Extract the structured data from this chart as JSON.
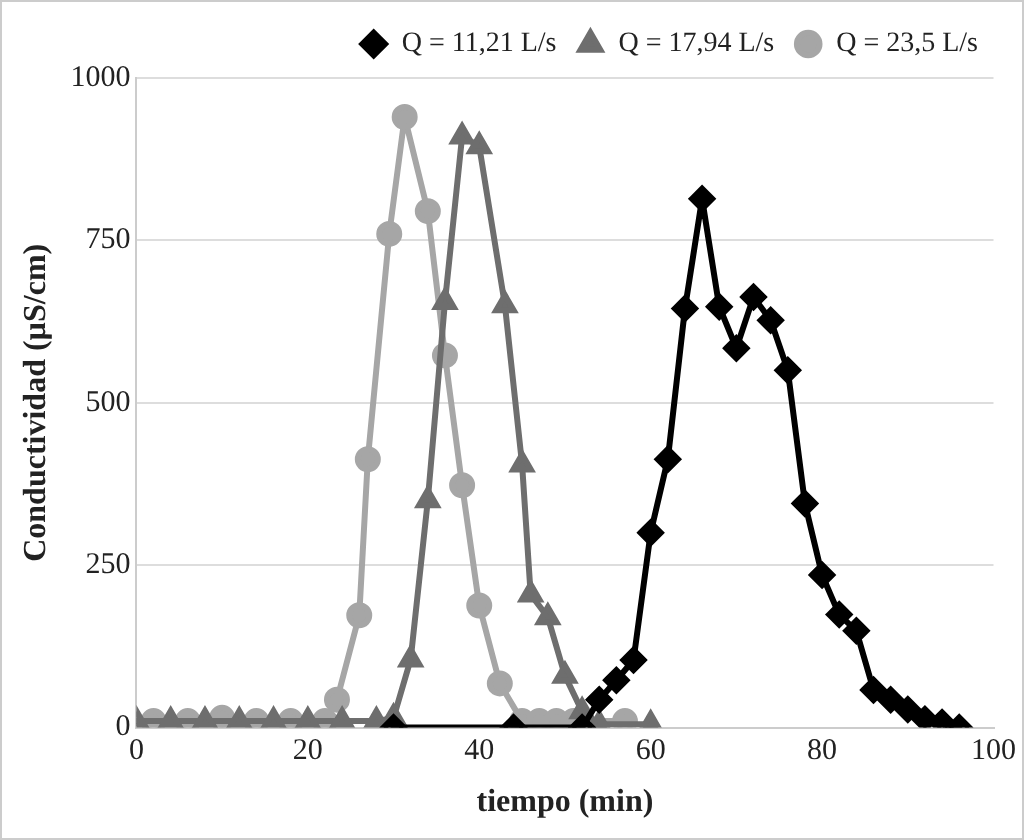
{
  "chart_data": {
    "type": "line",
    "xlabel": "tiempo (min)",
    "ylabel": "Conductividad (µS/cm)",
    "xlim": [
      0,
      100
    ],
    "xticks": [
      0,
      20,
      40,
      60,
      80,
      100
    ],
    "ylim": [
      0,
      1000
    ],
    "yticks": [
      0,
      250,
      500,
      750,
      1000
    ],
    "grid": "y",
    "legend": "top right",
    "line_style": "solid",
    "series": [
      {
        "name": "Q = 11,21 L/s",
        "color": "#000000",
        "marker": "diamond",
        "x": [
          30,
          44,
          52,
          54,
          56,
          58,
          60,
          62,
          64,
          66,
          68,
          70,
          72,
          74,
          76,
          78,
          80,
          82,
          84,
          86,
          88,
          90,
          92,
          94,
          96
        ],
        "values": [
          0,
          0,
          0,
          43,
          73,
          104,
          300,
          413,
          645,
          814,
          648,
          584,
          663,
          627,
          550,
          345,
          235,
          174,
          149,
          58,
          43,
          28,
          13,
          8,
          0
        ]
      },
      {
        "name": "Q = 17,94 L/s",
        "color": "#6e6e6e",
        "marker": "triangle",
        "x": [
          0,
          4,
          8,
          12,
          16,
          20,
          24,
          28,
          30,
          32,
          34,
          36,
          38,
          40,
          43,
          45,
          46,
          48,
          50,
          52,
          54,
          60
        ],
        "values": [
          10,
          10,
          10,
          10,
          10,
          10,
          10,
          10,
          15,
          105,
          350,
          655,
          910,
          895,
          650,
          405,
          205,
          170,
          80,
          25,
          5,
          5
        ]
      },
      {
        "name": "Q = 23,5 L/s",
        "color": "#a6a6a6",
        "marker": "circle",
        "x": [
          2,
          6,
          10,
          14,
          18,
          22,
          23.4,
          26,
          27,
          29.5,
          31.3,
          34,
          36,
          38,
          40,
          42.4,
          45,
          47,
          49,
          51,
          57
        ],
        "values": [
          10,
          10,
          15,
          10,
          10,
          10,
          43,
          173,
          413,
          760,
          940,
          795,
          573,
          373,
          188,
          68,
          10,
          10,
          10,
          10,
          10
        ]
      }
    ]
  }
}
